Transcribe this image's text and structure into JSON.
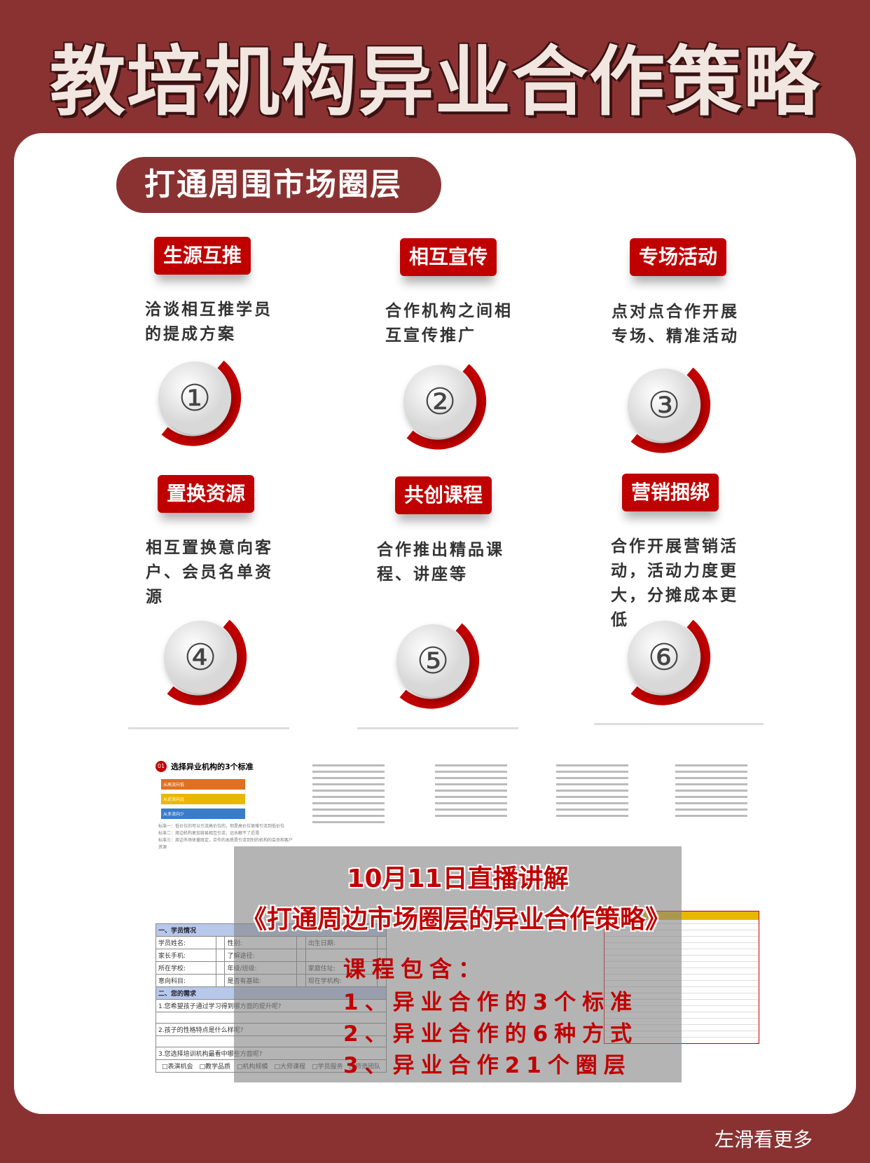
{
  "title": "教培机构异业合作策略",
  "section_pill": "打通周围市场圈层",
  "accent_color": "#c00000",
  "background_color": "#8a3232",
  "items": [
    {
      "tag": "生源互推",
      "desc": "洽谈相互推学员的提成方案",
      "number": "①"
    },
    {
      "tag": "相互宣传",
      "desc": "合作机构之间相互宣传推广",
      "number": "②"
    },
    {
      "tag": "专场活动",
      "desc": "点对点合作开展专场、精准活动",
      "number": "③"
    },
    {
      "tag": "置换资源",
      "desc": "相互置换意向客户、会员名单资源",
      "number": "④"
    },
    {
      "tag": "共创课程",
      "desc": "合作推出精品课程、讲座等",
      "number": "⑤"
    },
    {
      "tag": "营销捆绑",
      "desc": "合作开展营销活动，活动力度更大，分摊成本更低",
      "number": "⑥"
    }
  ],
  "preview": {
    "slide_title": "选择异业机构的3个标准",
    "slide_badge": "01",
    "standards": [
      "标准一：低价位的可以引流高价位的，但是高价位很难引流到低价位",
      "标准二：周边机构更加容易相互引流，远水解不了近渴",
      "标准三：周边市场体量既定，合作的本质是引流到别的机构的会员和客户资源"
    ],
    "flow": [
      "从高流向低",
      "从近流向远",
      "从多流向少"
    ],
    "form": {
      "section1": "一、学员情况",
      "rows": [
        [
          "学员姓名:",
          "性别:",
          "出生日期:"
        ],
        [
          "家长手机:",
          "了解途径:",
          ""
        ],
        [
          "所在学校:",
          "年级/班级:",
          "家庭住址:"
        ],
        [
          "意向科目:",
          "是否有基础:",
          "现在学机构:"
        ]
      ],
      "section2": "二、您的需求",
      "questions": [
        "1.您希望孩子通过学习得到哪方面的提升呢?",
        "2.孩子的性格特点是什么样呢?",
        "3.您选择培训机构最看中哪些方面呢?"
      ],
      "options": "□表演机会　□教学品质　□机构规模　□大师课程　□学员服务　□师资团队"
    }
  },
  "overlay": {
    "line1": "10月11日直播讲解",
    "line2": "《打通周边市场圈层的异业合作策略》",
    "course_label": "课程包含：",
    "courses": [
      "1、异业合作的3个标准",
      "2、异业合作的6种方式",
      "3、异业合作21个圈层"
    ]
  },
  "swipe_hint": "左滑看更多"
}
